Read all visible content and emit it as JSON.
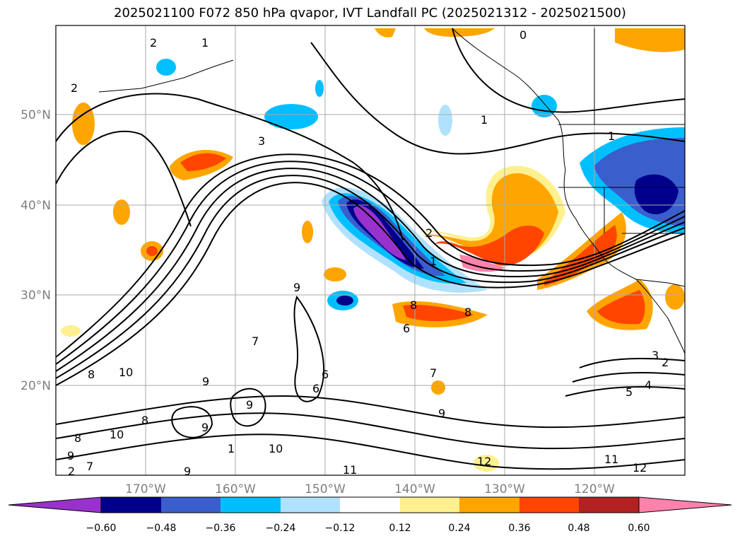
{
  "title": "2025021100 F072 850 hPa qvapor, IVT Landfall PC (2025021312 - 2025021500)",
  "map": {
    "lat_labels": [
      "50°N",
      "40°N",
      "30°N",
      "20°N"
    ],
    "lon_labels": [
      "170°W",
      "160°W",
      "150°W",
      "140°W",
      "130°W",
      "120°W"
    ],
    "contour_labels": [
      "2",
      "1",
      "0",
      "2",
      "3",
      "1",
      "1",
      "2",
      "1",
      "7",
      "9",
      "8",
      "6",
      "6",
      "7",
      "9",
      "9",
      "6",
      "8",
      "8",
      "10",
      "8",
      "7",
      "9",
      "9",
      "9",
      "10",
      "11",
      "12",
      "11",
      "12",
      "3",
      "2",
      "4",
      "5",
      "9",
      "8",
      "1",
      "2"
    ]
  },
  "colorbar": {
    "ticks": [
      "−0.60",
      "−0.48",
      "−0.36",
      "−0.24",
      "−0.12",
      "0.12",
      "0.24",
      "0.36",
      "0.48",
      "0.60"
    ],
    "colors": [
      "#9932cc",
      "#00008b",
      "#3a5fcd",
      "#00bfff",
      "#b0e2ff",
      "#ffffff",
      "#fff08f",
      "#ffa500",
      "#ff4500",
      "#b22222",
      "#ff82ab"
    ]
  }
}
